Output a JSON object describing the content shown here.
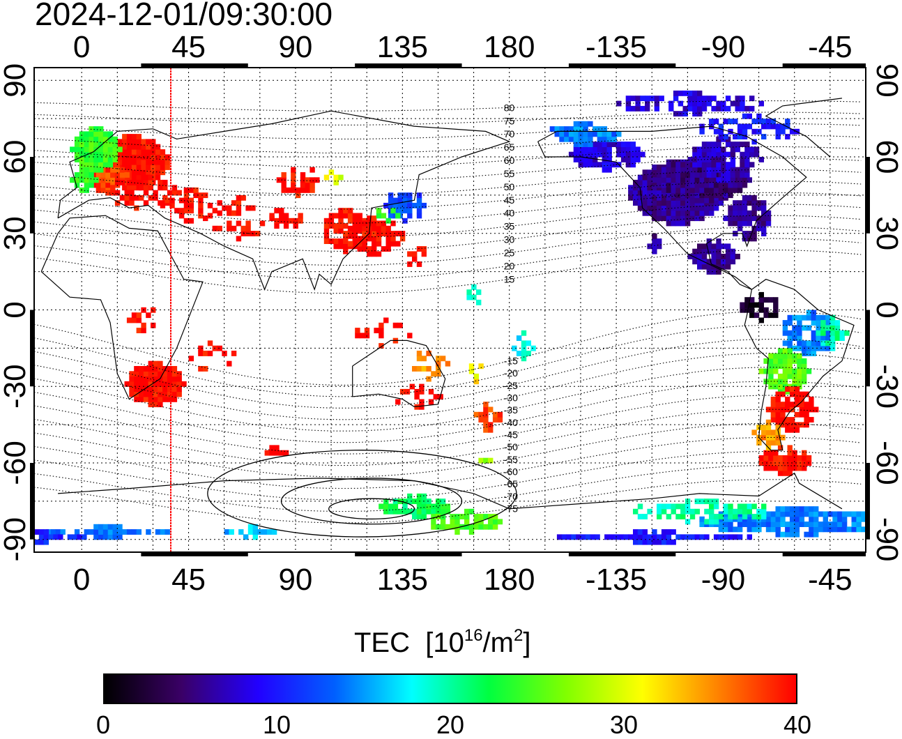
{
  "timestamp": "2024-12-01/09:30:00",
  "top_lon_labels": [
    "0",
    "45",
    "90",
    "135",
    "180",
    "-135",
    "-90",
    "-45"
  ],
  "bottom_lon_labels": [
    "0",
    "45",
    "90",
    "135",
    "180",
    "-135",
    "-90",
    "-45"
  ],
  "left_lat_labels": [
    "90",
    "60",
    "30",
    "0",
    "-30",
    "-60",
    "-90"
  ],
  "right_lat_labels": [
    "90",
    "60",
    "30",
    "0",
    "-30",
    "-60",
    "-90"
  ],
  "contour_labels": [
    "80",
    "75",
    "70",
    "65",
    "60",
    "55",
    "50",
    "45",
    "40",
    "35",
    "30",
    "25",
    "20",
    "15",
    "-15",
    "-20",
    "-25",
    "-30",
    "-35",
    "-40",
    "-45",
    "-50",
    "-55",
    "-60",
    "-65",
    "-70",
    "-75"
  ],
  "colorbar": {
    "title": "TEC",
    "unit_base": "[10",
    "unit_exp": "16",
    "unit_mid": "/m",
    "unit_exp2": "2",
    "unit_end": "]",
    "ticks": [
      "0",
      "10",
      "20",
      "30",
      "40"
    ],
    "min": 0,
    "max": 40,
    "colors": [
      "#000000",
      "#3a0066",
      "#2200ff",
      "#0060ff",
      "#00ffff",
      "#00ff40",
      "#80ff00",
      "#ffff00",
      "#ff8000",
      "#ff0000"
    ]
  },
  "map": {
    "lon_min": -20,
    "lon_max": 330,
    "lat_min": -95,
    "lat_max": 95,
    "terminator_lon": 37.5,
    "terminator_color": "#ff0000"
  }
}
